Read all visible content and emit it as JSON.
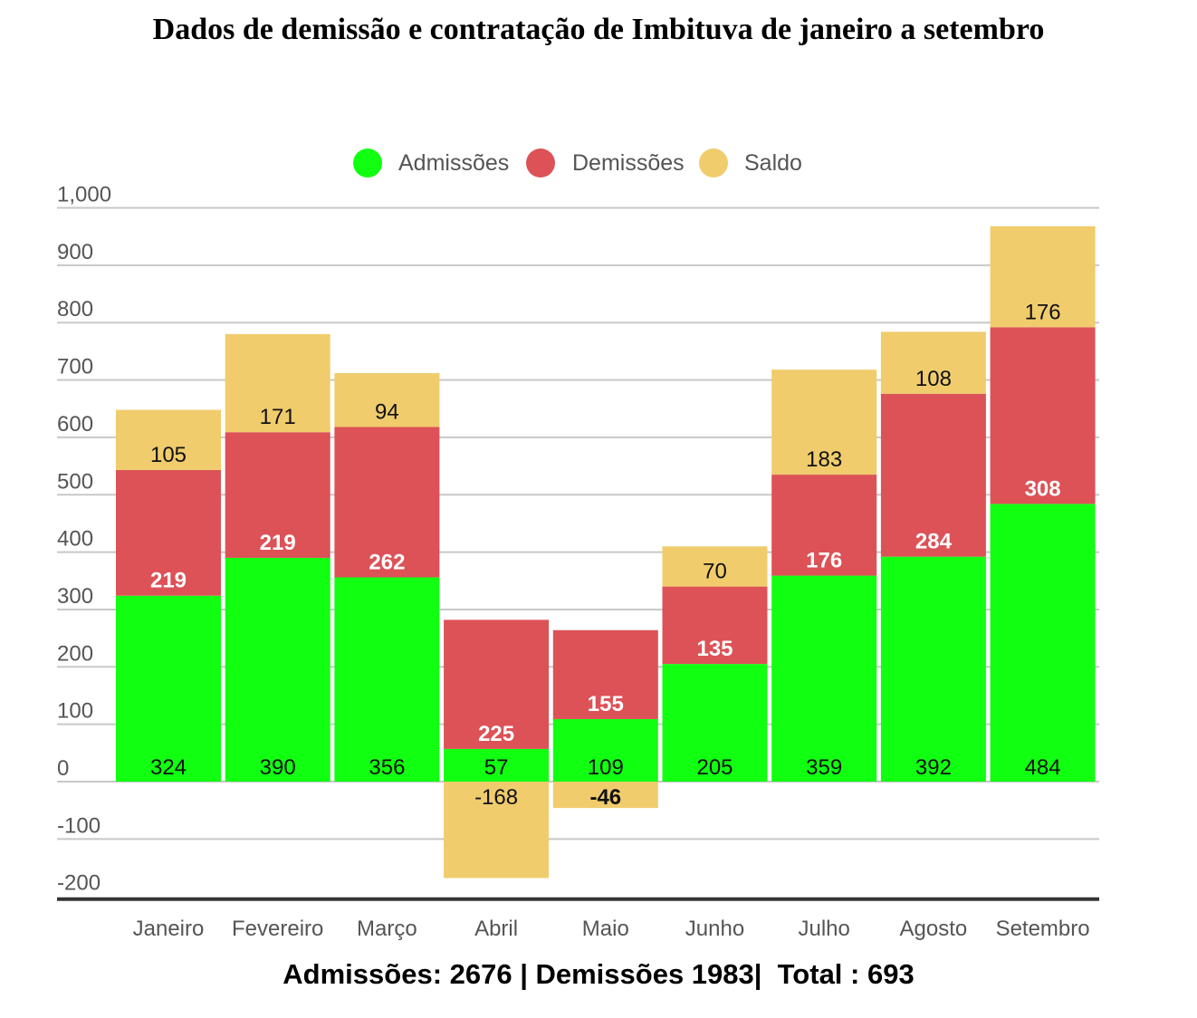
{
  "title": "Dados de demissão e contratação de Imbituva de janeiro a setembro",
  "summary": "Admissões: 2676 | Demissões 1983|  Total : 693",
  "chart_data": {
    "type": "bar",
    "stacked": true,
    "title": "Dados de demissão e contratação de Imbituva de janeiro a setembro",
    "xlabel": "",
    "ylabel": "",
    "ylim": [
      -200,
      1000
    ],
    "yticks": [
      1000,
      900,
      800,
      700,
      600,
      500,
      400,
      300,
      200,
      100,
      0,
      -100,
      -200
    ],
    "ytick_labels": [
      "1,000",
      "900",
      "800",
      "700",
      "600",
      "500",
      "400",
      "300",
      "200",
      "100",
      "0",
      "-100",
      "-200"
    ],
    "grid": true,
    "legend_position": "top-center",
    "categories": [
      "Janeiro",
      "Fevereiro",
      "Março",
      "Abril",
      "Maio",
      "Junho",
      "Julho",
      "Agosto",
      "Setembro"
    ],
    "series": [
      {
        "name": "Admissões",
        "color": "#11ff11",
        "values": [
          324,
          390,
          356,
          57,
          109,
          205,
          359,
          392,
          484
        ]
      },
      {
        "name": "Demissões",
        "color": "#dc5257",
        "values": [
          219,
          219,
          262,
          225,
          155,
          135,
          176,
          284,
          308
        ]
      },
      {
        "name": "Saldo",
        "color": "#f0cc6d",
        "values": [
          105,
          171,
          94,
          -168,
          -46,
          70,
          183,
          108,
          176
        ]
      }
    ]
  }
}
